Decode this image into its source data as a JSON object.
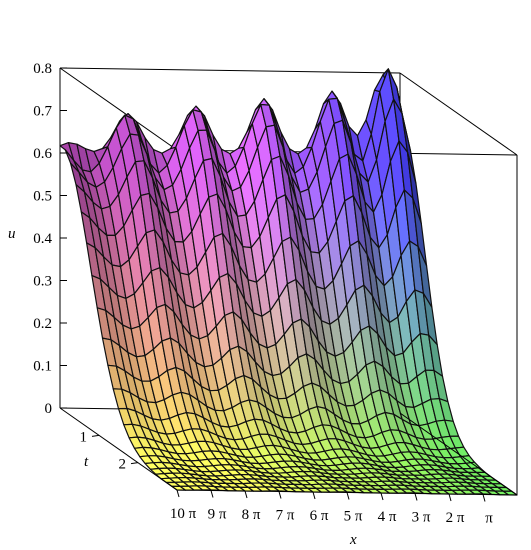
{
  "chart_data": {
    "type": "surface3d",
    "title": "",
    "zlabel": "u",
    "tlabel": "t",
    "xlabel": "x",
    "zlim": [
      0,
      0.8
    ],
    "z_ticks": [
      "0",
      "0.1",
      "0.2",
      "0.3",
      "0.4",
      "0.5",
      "0.6",
      "0.7",
      "0.8"
    ],
    "t_range": [
      0,
      3
    ],
    "t_ticks": [
      "1",
      "2"
    ],
    "x_range_pi": [
      0,
      10
    ],
    "x_ticks": [
      "10 π",
      "9 π",
      "8 π",
      "7 π",
      "6 π",
      "5 π",
      "4 π",
      "3 π",
      "2 π",
      "π"
    ],
    "back_edge_peaks": [
      {
        "x_pi": 0.5,
        "u": 0.8
      },
      {
        "x_pi": 2.0,
        "u": 0.76
      },
      {
        "x_pi": 4.0,
        "u": 0.74
      },
      {
        "x_pi": 6.0,
        "u": 0.72
      },
      {
        "x_pi": 8.0,
        "u": 0.7
      },
      {
        "x_pi": 9.7,
        "u": 0.63
      }
    ],
    "colors": {
      "low_front": "#ffff60",
      "low_mid": "#60f060",
      "low_back": "#f09060",
      "high_right": "#4040ff",
      "high_left": "#a040a0",
      "high_mid": "#d060f0"
    }
  }
}
